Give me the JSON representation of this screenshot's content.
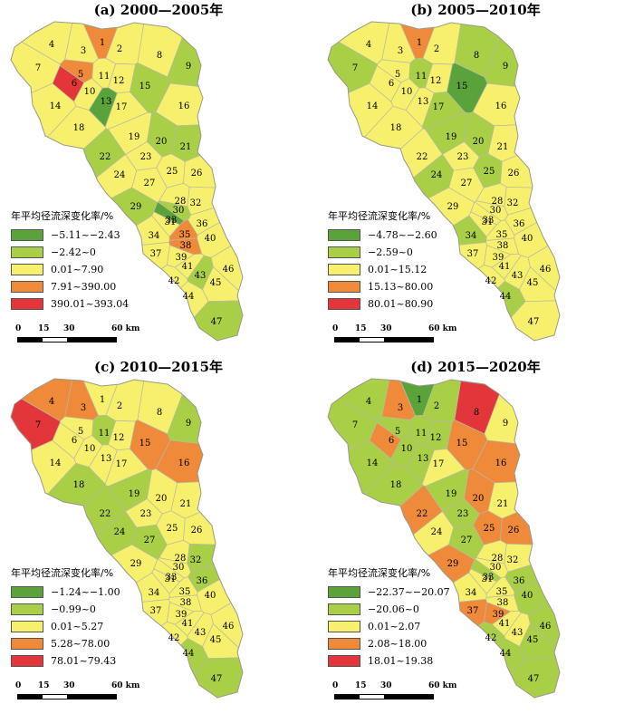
{
  "colors": {
    "c1": "#5aa23a",
    "c2": "#a9cf47",
    "c3": "#f7f06c",
    "c4": "#ee8a3a",
    "c5": "#e3363a"
  },
  "legend_title": "年平均径流深变化率/%",
  "scale": {
    "t0": "0",
    "t1": "15",
    "t2": "30",
    "t3": "60 km"
  },
  "panels": [
    {
      "title": "(a)  2000—2005年",
      "legend": [
        "−5.11~−2.43",
        "−2.42~0",
        "0.01~7.90",
        "7.91~390.00",
        "390.01~393.04"
      ],
      "classes": {
        "1": 4,
        "2": 3,
        "3": 3,
        "4": 3,
        "5": 4,
        "6": 5,
        "7": 3,
        "8": 3,
        "9": 2,
        "10": 3,
        "11": 3,
        "12": 3,
        "13": 1,
        "14": 3,
        "15": 2,
        "16": 3,
        "17": 3,
        "18": 3,
        "19": 3,
        "20": 2,
        "21": 2,
        "22": 2,
        "23": 3,
        "24": 3,
        "25": 3,
        "26": 3,
        "27": 3,
        "28": 3,
        "29": 2,
        "30": 2,
        "31": 3,
        "32": 3,
        "33": 1,
        "34": 3,
        "35": 4,
        "36": 3,
        "37": 3,
        "38": 4,
        "39": 3,
        "40": 3,
        "41": 3,
        "42": 3,
        "43": 2,
        "44": 3,
        "45": 3,
        "46": 3,
        "47": 2
      }
    },
    {
      "title": "(b)  2005—2010年",
      "legend": [
        "−4.78~−2.60",
        "−2.59~0",
        "0.01~15.12",
        "15.13~80.00",
        "80.01~80.90"
      ],
      "classes": {
        "1": 4,
        "2": 3,
        "3": 3,
        "4": 3,
        "5": 3,
        "6": 3,
        "7": 2,
        "8": 2,
        "9": 2,
        "10": 3,
        "11": 2,
        "12": 3,
        "13": 3,
        "14": 3,
        "15": 1,
        "16": 3,
        "17": 2,
        "18": 3,
        "19": 2,
        "20": 2,
        "21": 3,
        "22": 3,
        "23": 3,
        "24": 2,
        "25": 2,
        "26": 3,
        "27": 3,
        "28": 3,
        "29": 3,
        "30": 3,
        "31": 3,
        "32": 3,
        "33": 3,
        "34": 2,
        "35": 3,
        "36": 3,
        "37": 3,
        "38": 3,
        "39": 3,
        "40": 3,
        "41": 3,
        "42": 3,
        "43": 3,
        "44": 2,
        "45": 3,
        "46": 3,
        "47": 3
      }
    },
    {
      "title": "(c)  2010—2015年",
      "legend": [
        "−1.24~−1.00",
        "−0.99~0",
        "0.01~5.27",
        "5.28~78.00",
        "78.01~79.43"
      ],
      "classes": {
        "1": 3,
        "2": 3,
        "3": 4,
        "4": 4,
        "5": 3,
        "6": 3,
        "7": 5,
        "8": 3,
        "9": 2,
        "10": 3,
        "11": 2,
        "12": 3,
        "13": 3,
        "14": 3,
        "15": 4,
        "16": 4,
        "17": 3,
        "18": 2,
        "19": 2,
        "20": 3,
        "21": 3,
        "22": 2,
        "23": 3,
        "24": 2,
        "25": 3,
        "26": 3,
        "27": 2,
        "28": 3,
        "29": 3,
        "30": 3,
        "31": 3,
        "32": 2,
        "33": 3,
        "34": 3,
        "35": 3,
        "36": 2,
        "37": 3,
        "38": 3,
        "39": 3,
        "40": 3,
        "41": 3,
        "42": 3,
        "43": 3,
        "44": 2,
        "45": 3,
        "46": 3,
        "47": 2
      }
    },
    {
      "title": "(d)  2015—2020年",
      "legend": [
        "−22.37~−20.07",
        "−20.06~0",
        "0.01~2.07",
        "2.08~18.00",
        "18.01~19.38"
      ],
      "classes": {
        "1": 1,
        "2": 2,
        "3": 4,
        "4": 2,
        "5": 2,
        "6": 4,
        "7": 2,
        "8": 5,
        "9": 3,
        "10": 2,
        "11": 2,
        "12": 2,
        "13": 2,
        "14": 2,
        "15": 4,
        "16": 4,
        "17": 3,
        "18": 2,
        "19": 2,
        "20": 4,
        "21": 3,
        "22": 4,
        "23": 2,
        "24": 3,
        "25": 4,
        "26": 4,
        "27": 2,
        "28": 3,
        "29": 4,
        "30": 3,
        "31": 3,
        "32": 3,
        "33": 2,
        "34": 3,
        "35": 3,
        "36": 2,
        "37": 4,
        "38": 3,
        "39": 4,
        "40": 2,
        "41": 3,
        "42": 2,
        "43": 3,
        "44": 2,
        "45": 2,
        "46": 2,
        "47": 2
      }
    }
  ]
}
